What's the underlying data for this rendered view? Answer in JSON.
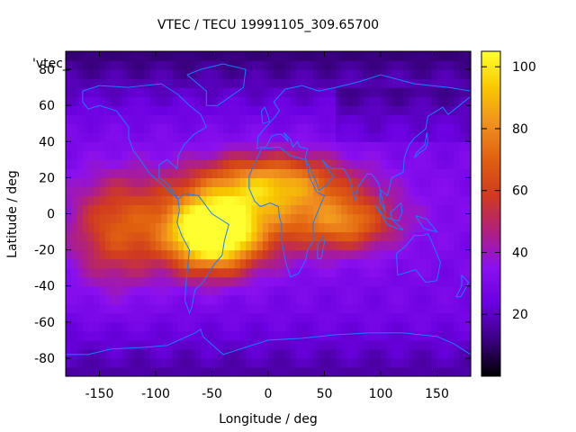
{
  "chart_data": {
    "type": "heatmap",
    "title": "VTEC / TECU 19991105_309.65700",
    "xlabel": "Longitude / deg",
    "ylabel": "Latitude / deg",
    "xlim": [
      -180,
      180
    ],
    "ylim": [
      -90,
      90
    ],
    "xticks": [
      -150,
      -100,
      -50,
      0,
      50,
      100,
      150
    ],
    "yticks": [
      -80,
      -60,
      -40,
      -20,
      0,
      20,
      40,
      60,
      80
    ],
    "colorbar": {
      "min": 0,
      "max": 105,
      "ticks": [
        20,
        40,
        60,
        80,
        100
      ]
    },
    "legend_label": "'vtec_",
    "colormap": [
      "#000000",
      "#3a0080",
      "#6a00e0",
      "#8a10f0",
      "#b02080",
      "#d03a20",
      "#e06010",
      "#f09020",
      "#f8c800",
      "#ffff30"
    ],
    "coastline_color": "#1a7cff",
    "grid": false,
    "features": [
      {
        "name": "equatorial_band",
        "lon": -10,
        "lat": 2,
        "peak": 60,
        "lon_width": 100,
        "lat_width": 24
      },
      {
        "name": "south_america_peak",
        "lon": -50,
        "lat": -12,
        "peak": 105,
        "lon_width": 40,
        "lat_width": 20
      },
      {
        "name": "western_pacific_lobe",
        "lon": -135,
        "lat": -10,
        "peak": 55,
        "lon_width": 40,
        "lat_width": 30
      },
      {
        "name": "africa_north",
        "lon": 5,
        "lat": 18,
        "peak": 62,
        "lon_width": 60,
        "lat_width": 15
      },
      {
        "name": "indian_ocean_tail",
        "lon": 70,
        "lat": -5,
        "peak": 55,
        "lon_width": 40,
        "lat_width": 14
      }
    ]
  }
}
